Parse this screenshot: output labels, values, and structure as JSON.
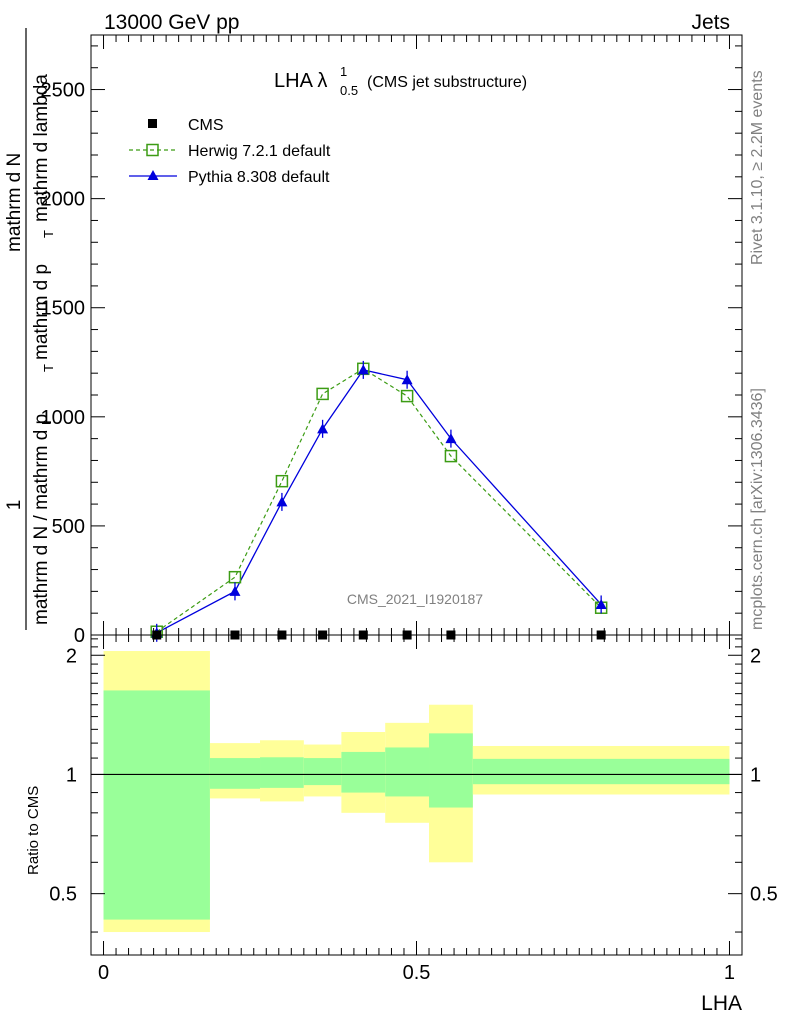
{
  "header": {
    "energy": "13000 GeV pp",
    "category": "Jets"
  },
  "title": {
    "main": "LHA λ",
    "superscript": "1",
    "subscript": "0.5",
    "suffix": "(CMS jet substructure)"
  },
  "side": {
    "rivet": "Rivet 3.1.10, ≥ 2.2M events",
    "mcplots": "mcplots.cern.ch [arXiv:1306.3436]"
  },
  "watermark": "CMS_2021_I1920187",
  "colors": {
    "herwig": "#3c9c14",
    "pythia": "#0000dd",
    "band_outer": "#ffff99",
    "band_inner": "#99ff99"
  },
  "chart_data": [
    {
      "type": "line",
      "ylabel_parts": [
        "1",
        "mathrm d N / mathrm d p",
        "T",
        "mathrm d N",
        "mathrm d p",
        "T",
        "mathrm d lambda"
      ],
      "xlim": [
        -0.02,
        1.02
      ],
      "ylim": [
        0,
        2750
      ],
      "yticks": [
        0,
        500,
        1000,
        1500,
        2000,
        2500
      ],
      "ytick_labels": [
        "0",
        "500",
        "1000",
        "1500",
        "2000",
        "2500"
      ],
      "legend": [
        "CMS",
        "Herwig 7.2.1 default",
        "Pythia 8.308 default"
      ],
      "legend_position": "top-left",
      "series": [
        {
          "name": "CMS",
          "marker": "square",
          "x": [
            0.085,
            0.21,
            0.285,
            0.35,
            0.415,
            0.485,
            0.555,
            0.795
          ],
          "y": [
            0,
            0,
            0,
            0,
            0,
            0,
            0,
            0
          ]
        },
        {
          "name": "Herwig 7.2.1 default",
          "marker": "open-square",
          "x": [
            0.085,
            0.21,
            0.285,
            0.35,
            0.415,
            0.485,
            0.555,
            0.795
          ],
          "y": [
            15,
            265,
            705,
            1105,
            1220,
            1095,
            820,
            125
          ]
        },
        {
          "name": "Pythia 8.308 default",
          "marker": "triangle",
          "x": [
            0.085,
            0.21,
            0.285,
            0.35,
            0.415,
            0.485,
            0.555,
            0.795
          ],
          "y": [
            10,
            200,
            610,
            945,
            1215,
            1170,
            900,
            140
          ]
        }
      ]
    },
    {
      "type": "area",
      "xlabel": "LHA",
      "ylabel": "Ratio to CMS",
      "xlim": [
        -0.02,
        1.02
      ],
      "ylim": [
        0.35,
        2.25
      ],
      "yscale": "log",
      "yticks": [
        0.5,
        1,
        2
      ],
      "ytick_labels": [
        "0.5",
        "1",
        "2"
      ],
      "xticks": [
        0,
        0.5,
        1
      ],
      "xtick_labels": [
        "0",
        "0.5",
        "1"
      ],
      "reference_line": 1,
      "bins": [
        {
          "x0": 0.0,
          "x1": 0.17,
          "outer": [
            0.4,
            2.05
          ],
          "inner": [
            0.43,
            1.63
          ]
        },
        {
          "x0": 0.17,
          "x1": 0.25,
          "outer": [
            0.87,
            1.2
          ],
          "inner": [
            0.92,
            1.1
          ]
        },
        {
          "x0": 0.25,
          "x1": 0.32,
          "outer": [
            0.855,
            1.22
          ],
          "inner": [
            0.925,
            1.105
          ]
        },
        {
          "x0": 0.32,
          "x1": 0.38,
          "outer": [
            0.88,
            1.19
          ],
          "inner": [
            0.94,
            1.1
          ]
        },
        {
          "x0": 0.38,
          "x1": 0.45,
          "outer": [
            0.8,
            1.28
          ],
          "inner": [
            0.9,
            1.14
          ]
        },
        {
          "x0": 0.45,
          "x1": 0.52,
          "outer": [
            0.755,
            1.35
          ],
          "inner": [
            0.88,
            1.17
          ]
        },
        {
          "x0": 0.52,
          "x1": 0.59,
          "outer": [
            0.6,
            1.5
          ],
          "inner": [
            0.825,
            1.27
          ]
        },
        {
          "x0": 0.59,
          "x1": 1.0,
          "outer": [
            0.89,
            1.18
          ],
          "inner": [
            0.945,
            1.095
          ]
        }
      ]
    }
  ]
}
